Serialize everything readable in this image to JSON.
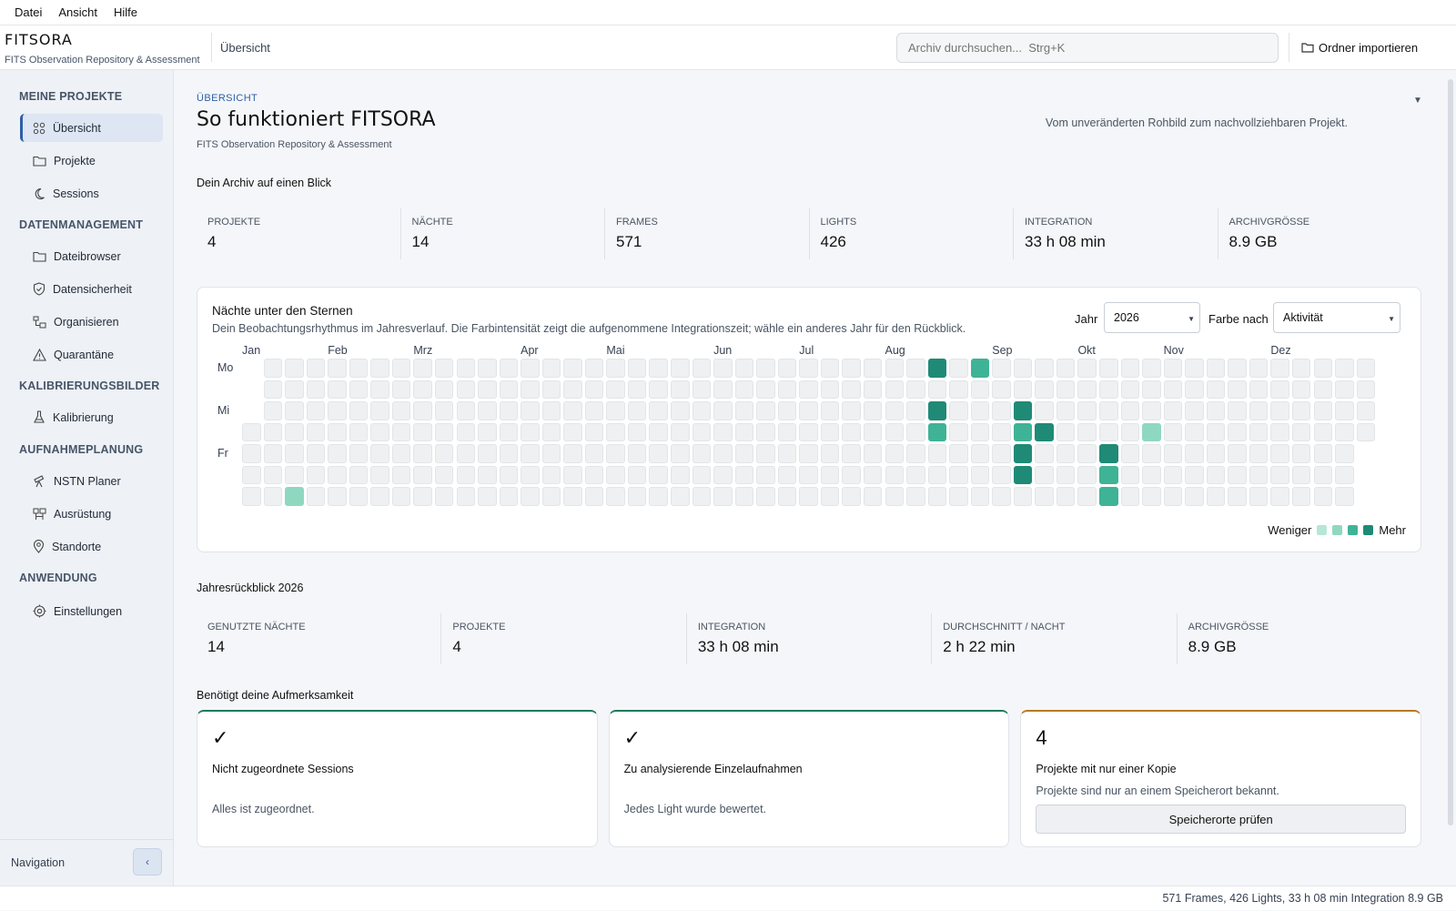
{
  "menubar": {
    "items": [
      {
        "label": "Datei"
      },
      {
        "label": "Ansicht"
      },
      {
        "label": "Hilfe"
      }
    ]
  },
  "header": {
    "app_name": "FITSORA",
    "app_subtitle": "FITS Observation Repository & Assessment",
    "breadcrumb": "Übersicht",
    "search_placeholder": "Archiv durchsuchen...  Strg+K",
    "import_label": "Ordner importieren"
  },
  "sidebar": {
    "sections": [
      {
        "title": "MEINE PROJEKTE",
        "items": [
          {
            "label": "Übersicht",
            "icon": "grid-icon",
            "active": true
          },
          {
            "label": "Projekte",
            "icon": "folder-icon"
          },
          {
            "label": "Sessions",
            "icon": "moon-icon"
          }
        ]
      },
      {
        "title": "DATENMANAGEMENT",
        "items": [
          {
            "label": "Dateibrowser",
            "icon": "folder-icon"
          },
          {
            "label": "Datensicherheit",
            "icon": "shield-icon"
          },
          {
            "label": "Organisieren",
            "icon": "organize-icon"
          },
          {
            "label": "Quarantäne",
            "icon": "warning-icon"
          }
        ]
      },
      {
        "title": "KALIBRIERUNGSBILDER",
        "items": [
          {
            "label": "Kalibrierung",
            "icon": "flask-icon"
          }
        ]
      },
      {
        "title": "AUFNAHMEPLANUNG",
        "items": [
          {
            "label": "NSTN Planer",
            "icon": "telescope-icon"
          },
          {
            "label": "Ausrüstung",
            "icon": "equipment-icon"
          },
          {
            "label": "Standorte",
            "icon": "location-pin-icon"
          }
        ]
      },
      {
        "title": "ANWENDUNG",
        "items": [
          {
            "label": "Einstellungen",
            "icon": "gear-icon"
          }
        ]
      }
    ],
    "footer_label": "Navigation",
    "collapse_label": "‹"
  },
  "page": {
    "eyebrow": "ÜBERSICHT",
    "title": "So funktioniert FITSORA",
    "subtitle": "FITS Observation Repository & Assessment",
    "tagline": "Vom unveränderten Rohbild zum nachvollziehbaren Projekt."
  },
  "archive": {
    "heading": "Dein Archiv auf einen Blick",
    "stats": [
      {
        "label": "PROJEKTE",
        "value": "4"
      },
      {
        "label": "NÄCHTE",
        "value": "14"
      },
      {
        "label": "FRAMES",
        "value": "571"
      },
      {
        "label": "LIGHTS",
        "value": "426"
      },
      {
        "label": "INTEGRATION",
        "value": "33 h 08 min"
      },
      {
        "label": "ARCHIVGRÖSSE",
        "value": "8.9 GB"
      }
    ]
  },
  "heatmap": {
    "title": "Nächte unter den Sternen",
    "description": "Dein Beobachtungsrhythmus im Jahresverlauf. Die Farbintensität zeigt die aufgenommene Integrationszeit; wähle ein anderes Jahr für den Rückblick.",
    "year_label": "Jahr",
    "year_value": "2026",
    "color_label": "Farbe nach",
    "color_value": "Aktivität",
    "months": [
      "Jan",
      "Feb",
      "Mrz",
      "Apr",
      "Mai",
      "Jun",
      "Jul",
      "Aug",
      "Sep",
      "Okt",
      "Nov",
      "Dez"
    ],
    "day_labels": [
      "Mo",
      "Mi",
      "Fr"
    ],
    "legend_less": "Weniger",
    "legend_more": "Mehr",
    "colors": [
      "#eef0f2",
      "#b6e6d6",
      "#8fd8c0",
      "#3fb396",
      "#1f8a76"
    ],
    "weeks": 53,
    "active_cells": [
      {
        "week": 32,
        "day": 0,
        "level": 4
      },
      {
        "week": 34,
        "day": 0,
        "level": 3
      },
      {
        "week": 32,
        "day": 2,
        "level": 4
      },
      {
        "week": 36,
        "day": 2,
        "level": 4
      },
      {
        "week": 32,
        "day": 3,
        "level": 3
      },
      {
        "week": 36,
        "day": 3,
        "level": 3
      },
      {
        "week": 37,
        "day": 3,
        "level": 4
      },
      {
        "week": 42,
        "day": 3,
        "level": 2
      },
      {
        "week": 36,
        "day": 4,
        "level": 4
      },
      {
        "week": 40,
        "day": 4,
        "level": 4
      },
      {
        "week": 36,
        "day": 5,
        "level": 4
      },
      {
        "week": 40,
        "day": 5,
        "level": 3
      },
      {
        "week": 2,
        "day": 6,
        "level": 2
      },
      {
        "week": 40,
        "day": 6,
        "level": 3
      }
    ]
  },
  "year_review": {
    "heading": "Jahresrückblick 2026",
    "stats": [
      {
        "label": "GENUTZTE NÄCHTE",
        "value": "14"
      },
      {
        "label": "PROJEKTE",
        "value": "4"
      },
      {
        "label": "INTEGRATION",
        "value": "33 h 08 min"
      },
      {
        "label": "DURCHSCHNITT / NACHT",
        "value": "2 h 22 min"
      },
      {
        "label": "ARCHIVGRÖSSE",
        "value": "8.9 GB"
      }
    ]
  },
  "attention": {
    "heading": "Benötigt deine Aufmerksamkeit",
    "cards": [
      {
        "big": "✓",
        "title": "Nicht zugeordnete Sessions",
        "text": "Alles ist zugeordnet.",
        "accent": "#1f7a5a"
      },
      {
        "big": "✓",
        "title": "Zu analysierende Einzelaufnahmen",
        "text": "Jedes Light wurde bewertet.",
        "accent": "#1f7a5a"
      },
      {
        "big": "4",
        "title": "Projekte mit nur einer Kopie",
        "text": "Projekte sind nur an einem Speicherort bekannt.",
        "button": "Speicherorte prüfen",
        "accent": "#b7791f"
      }
    ]
  },
  "statusbar": {
    "text": "571 Frames, 426 Lights, 33 h 08 min Integration  8.9 GB"
  }
}
